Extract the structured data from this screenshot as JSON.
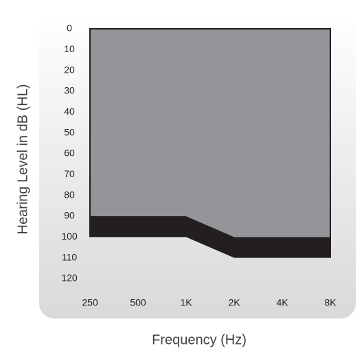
{
  "chart_data": {
    "type": "area",
    "x_label": "Frequency (Hz)",
    "y_label": "Hearing Level in dB (HL)",
    "categories": [
      "250",
      "500",
      "1K",
      "2K",
      "4K",
      "8K"
    ],
    "series": [
      {
        "color": "#939598",
        "values": [
          90,
          90,
          90,
          100,
          100,
          100
        ]
      },
      {
        "color": "#231f20",
        "values": [
          10,
          10,
          10,
          10,
          10,
          10
        ]
      }
    ],
    "stacked": true,
    "inverted_y": true,
    "ylim": [
      0,
      120
    ],
    "yticks": [
      0,
      10,
      20,
      30,
      40,
      50,
      60,
      70,
      80,
      90,
      100,
      110,
      120
    ]
  }
}
